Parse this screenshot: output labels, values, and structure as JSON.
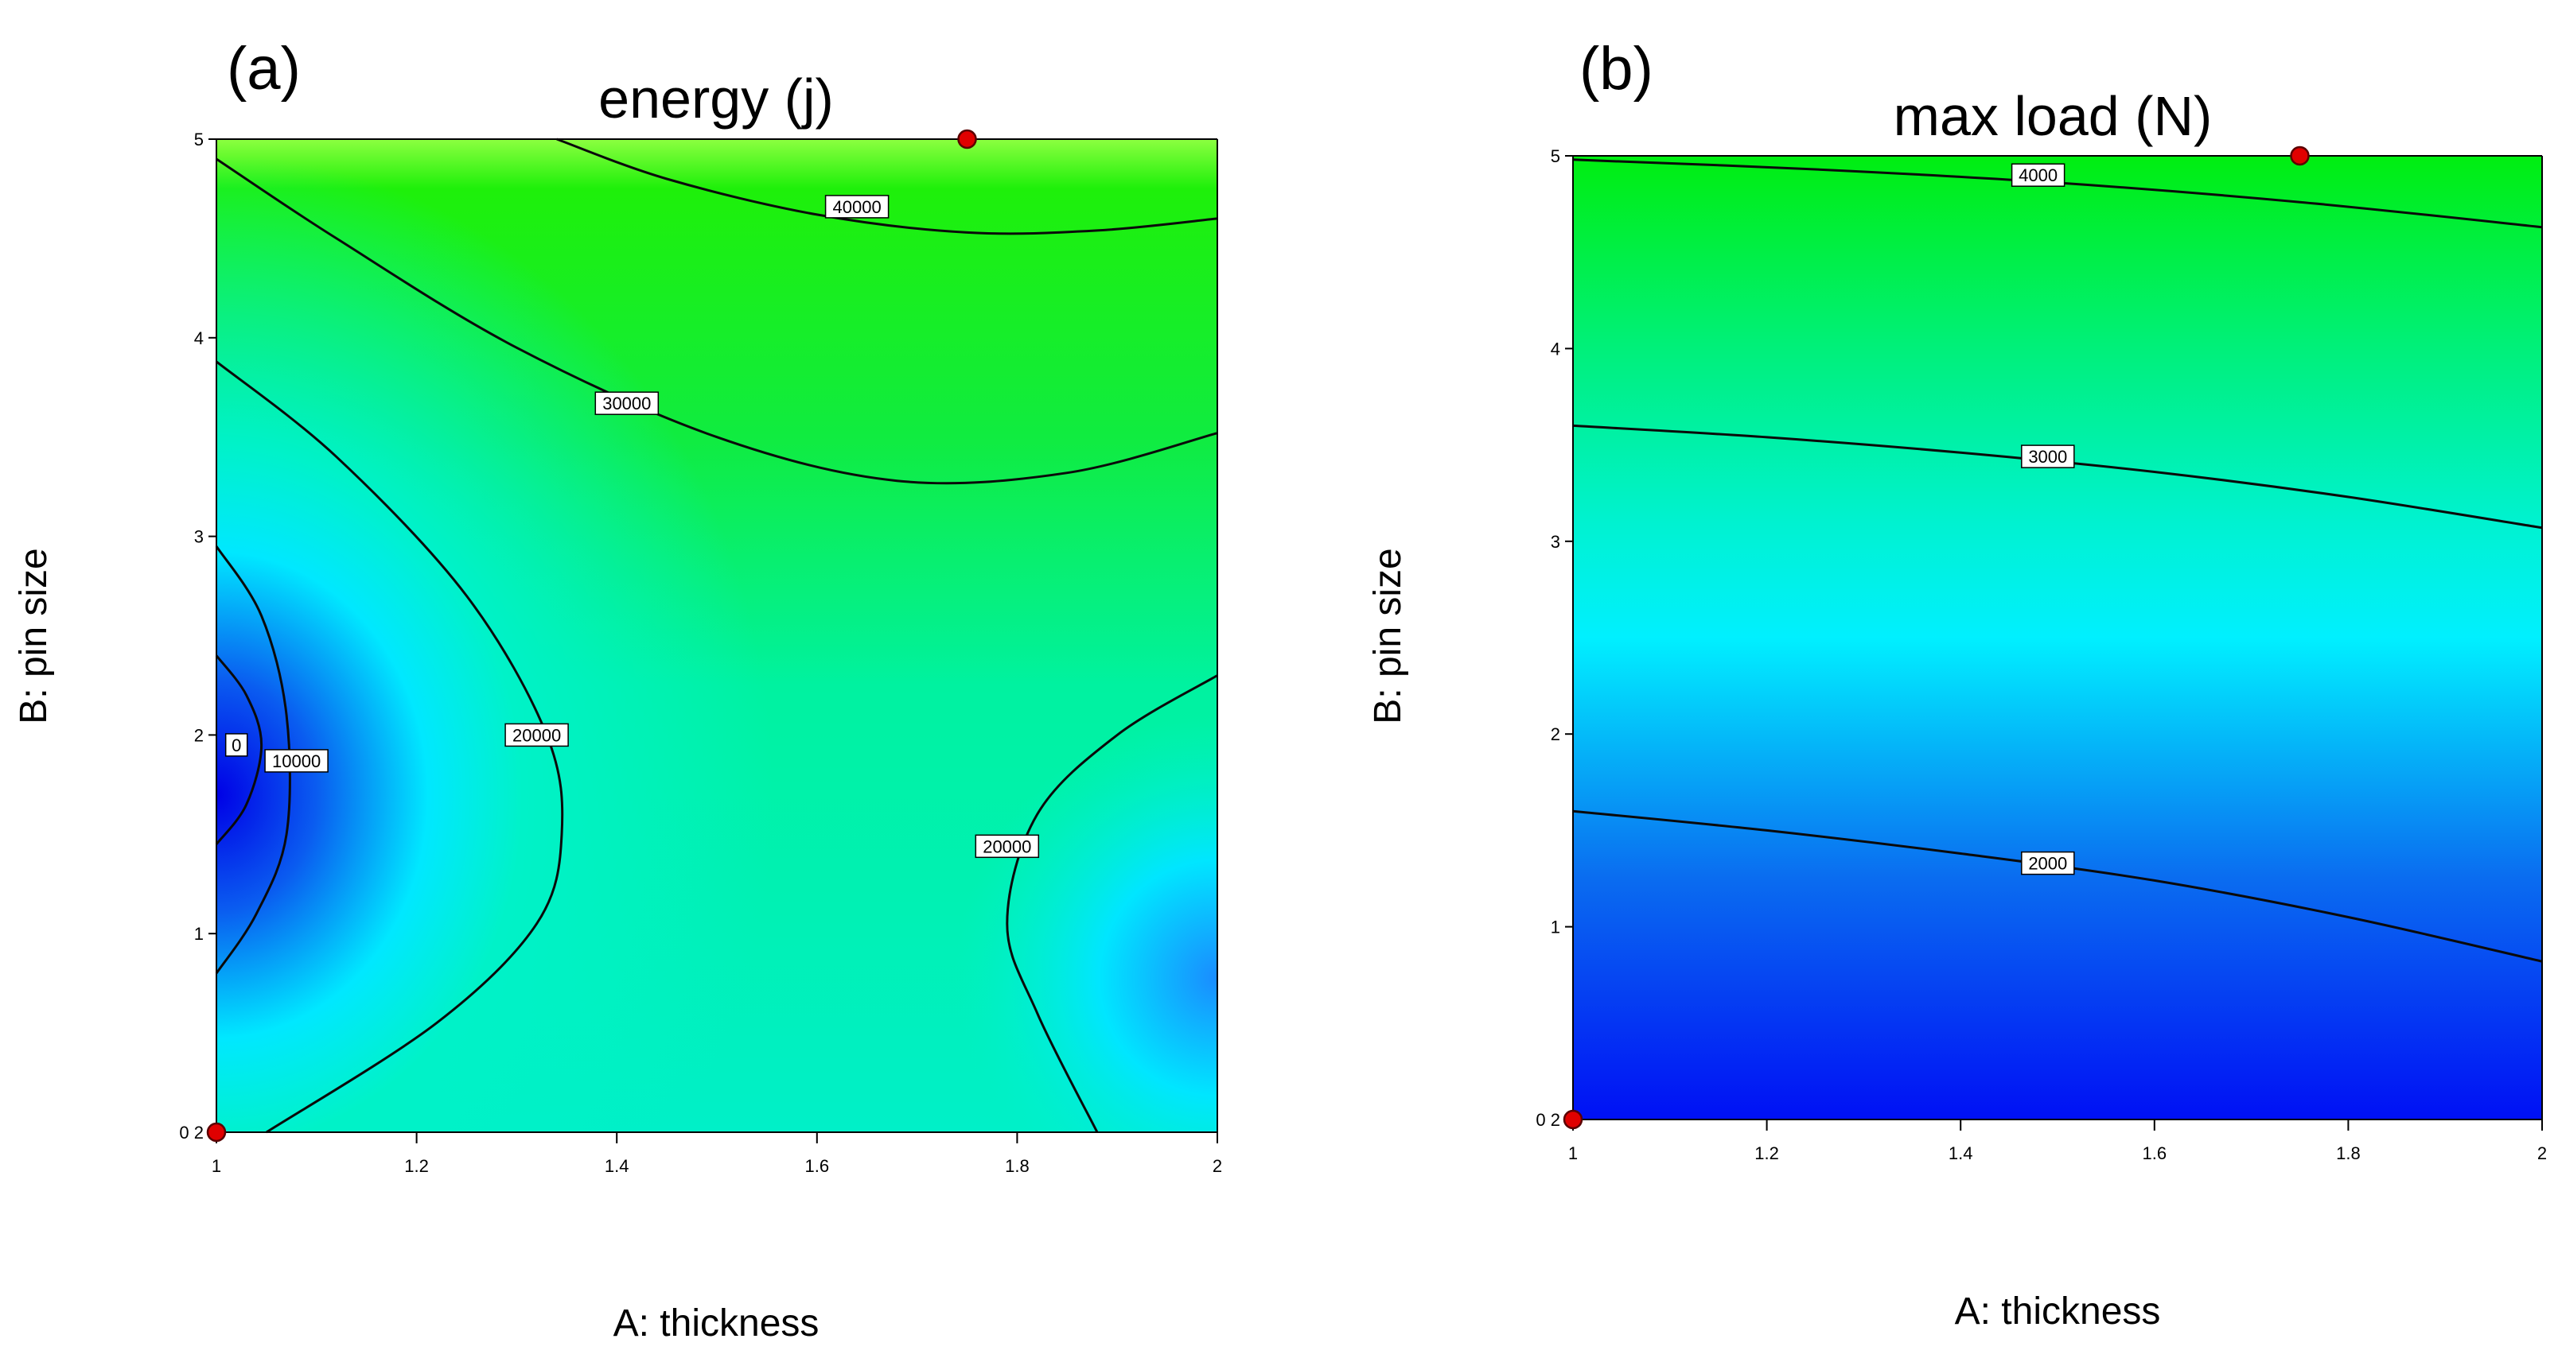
{
  "chart_data": [
    {
      "type": "heatmap",
      "subtype": "contour",
      "panel_label": "(a)",
      "title": "energy (j)",
      "xlabel": "A: thickness",
      "ylabel": "B: pin size",
      "xlim": [
        1,
        2
      ],
      "ylim": [
        0,
        5
      ],
      "x_ticks": [
        "1",
        "1.2",
        "1.4",
        "1.6",
        "1.8",
        "2"
      ],
      "y_ticks": [
        "0",
        "1",
        "2",
        "3",
        "4",
        "5"
      ],
      "y_zero_label": "0 2",
      "color_scale": [
        "#0000ff",
        "#00ffff",
        "#00ff00"
      ],
      "contours": [
        {
          "label": "0",
          "label_at": [
            1.02,
            1.95
          ],
          "points": [
            [
              1.0,
              2.4
            ],
            [
              1.03,
              2.2
            ],
            [
              1.045,
              1.95
            ],
            [
              1.03,
              1.65
            ],
            [
              1.0,
              1.45
            ]
          ]
        },
        {
          "label": "10000",
          "label_at": [
            1.08,
            1.87
          ],
          "points": [
            [
              1.0,
              2.95
            ],
            [
              1.045,
              2.6
            ],
            [
              1.07,
              2.1
            ],
            [
              1.07,
              1.5
            ],
            [
              1.04,
              1.1
            ],
            [
              1.0,
              0.8
            ]
          ]
        },
        {
          "label": "20000",
          "label_at": [
            1.32,
            2.0
          ],
          "points": [
            [
              1.0,
              3.88
            ],
            [
              1.12,
              3.4
            ],
            [
              1.25,
              2.7
            ],
            [
              1.33,
              2.0
            ],
            [
              1.345,
              1.5
            ],
            [
              1.32,
              1.05
            ],
            [
              1.22,
              0.55
            ],
            [
              1.05,
              0.0
            ]
          ]
        },
        {
          "label": "20000",
          "label_at": [
            1.79,
            1.44
          ],
          "points": [
            [
              2.0,
              2.3
            ],
            [
              1.9,
              2.0
            ],
            [
              1.82,
              1.6
            ],
            [
              1.79,
              1.05
            ],
            [
              1.82,
              0.6
            ],
            [
              1.88,
              0.0
            ]
          ]
        },
        {
          "label": "30000",
          "label_at": [
            1.41,
            3.67
          ],
          "points": [
            [
              1.0,
              4.9
            ],
            [
              1.12,
              4.5
            ],
            [
              1.3,
              3.95
            ],
            [
              1.5,
              3.5
            ],
            [
              1.68,
              3.28
            ],
            [
              1.85,
              3.32
            ],
            [
              2.0,
              3.52
            ]
          ]
        },
        {
          "label": "40000",
          "label_at": [
            1.64,
            4.66
          ],
          "points": [
            [
              1.34,
              5.0
            ],
            [
              1.45,
              4.8
            ],
            [
              1.6,
              4.62
            ],
            [
              1.75,
              4.53
            ],
            [
              1.88,
              4.54
            ],
            [
              2.0,
              4.6
            ]
          ]
        }
      ],
      "markers": [
        {
          "x": 1.0,
          "y": 0.0
        },
        {
          "x": 1.75,
          "y": 5.0
        }
      ]
    },
    {
      "type": "heatmap",
      "subtype": "contour",
      "panel_label": "(b)",
      "title": "max load (N)",
      "xlabel": "A: thickness",
      "ylabel": "B: pin size",
      "xlim": [
        1,
        2
      ],
      "ylim": [
        0,
        5
      ],
      "x_ticks": [
        "1",
        "1.2",
        "1.4",
        "1.6",
        "1.8",
        "2"
      ],
      "y_ticks": [
        "0",
        "1",
        "2",
        "3",
        "4",
        "5"
      ],
      "y_zero_label": "0 2",
      "color_scale": [
        "#0000ff",
        "#00ffff",
        "#00ff00"
      ],
      "contours": [
        {
          "label": "2000",
          "label_at": [
            1.49,
            1.33
          ],
          "points": [
            [
              1.0,
              1.6
            ],
            [
              1.2,
              1.5
            ],
            [
              1.4,
              1.38
            ],
            [
              1.6,
              1.24
            ],
            [
              1.8,
              1.05
            ],
            [
              2.0,
              0.82
            ]
          ]
        },
        {
          "label": "3000",
          "label_at": [
            1.49,
            3.44
          ],
          "points": [
            [
              1.0,
              3.6
            ],
            [
              1.2,
              3.54
            ],
            [
              1.4,
              3.46
            ],
            [
              1.6,
              3.36
            ],
            [
              1.8,
              3.23
            ],
            [
              2.0,
              3.07
            ]
          ]
        },
        {
          "label": "4000",
          "label_at": [
            1.48,
            4.9
          ],
          "points": [
            [
              1.0,
              4.98
            ],
            [
              1.25,
              4.93
            ],
            [
              1.5,
              4.86
            ],
            [
              1.75,
              4.76
            ],
            [
              2.0,
              4.63
            ]
          ]
        }
      ],
      "markers": [
        {
          "x": 1.0,
          "y": 0.0
        },
        {
          "x": 1.75,
          "y": 5.0
        }
      ]
    }
  ]
}
